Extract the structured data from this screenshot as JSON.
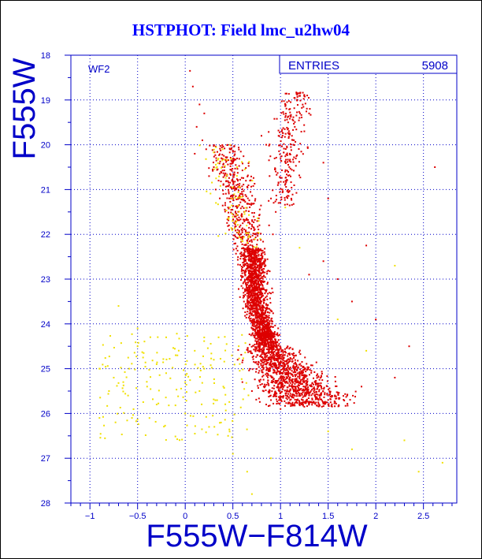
{
  "chart_data": {
    "type": "scatter",
    "title": "HSTPHOT: Field lmc_u2hw04",
    "xlabel": "F555W−F814W",
    "ylabel": "F555W",
    "panel_label": "WF2",
    "stats": {
      "label": "ENTRIES",
      "value": "5908"
    },
    "xlim": [
      -1.2,
      2.85
    ],
    "ylim": [
      28,
      18
    ],
    "y_inverted": true,
    "grid": true,
    "grid_style": "dotted",
    "x_ticks": [
      -1,
      -0.5,
      0,
      0.5,
      1,
      1.5,
      2,
      2.5
    ],
    "x_tick_labels": [
      "−1",
      "−0.5",
      "0",
      "0.5",
      "1",
      "1.5",
      "2",
      "2.5"
    ],
    "y_ticks": [
      18,
      19,
      20,
      21,
      22,
      23,
      24,
      25,
      26,
      27,
      28
    ],
    "y_tick_labels": [
      "18",
      "19",
      "20",
      "21",
      "22",
      "23",
      "24",
      "25",
      "26",
      "27",
      "28"
    ],
    "colors": {
      "axis": "#0000c8",
      "title": "#0000ff",
      "main_points": "#dd0000",
      "secondary_points": "#f0e000"
    },
    "series": [
      {
        "color": "#dd0000",
        "points": [
          [
            0.05,
            18.35
          ],
          [
            0.08,
            18.7
          ],
          [
            0.15,
            19.1
          ],
          [
            0.2,
            19.3
          ],
          [
            0.12,
            19.6
          ],
          [
            0.18,
            19.9
          ],
          [
            0.1,
            20.2
          ],
          [
            0.22,
            20.1
          ],
          [
            1.05,
            19.1
          ],
          [
            1.1,
            19.2
          ],
          [
            1.08,
            19.5
          ],
          [
            1.15,
            19.6
          ],
          [
            1.2,
            19.4
          ],
          [
            1.12,
            19.8
          ],
          [
            1.25,
            19.7
          ],
          [
            1.3,
            19.3
          ],
          [
            0.8,
            19.8
          ],
          [
            0.85,
            20.0
          ],
          [
            1.0,
            20.3
          ],
          [
            1.05,
            20.6
          ],
          [
            1.02,
            21.0
          ],
          [
            0.98,
            21.3
          ],
          [
            2.62,
            20.5
          ],
          [
            1.45,
            20.4
          ],
          [
            1.28,
            18.9
          ],
          [
            1.18,
            18.85
          ],
          [
            1.9,
            22.25
          ],
          [
            1.5,
            21.2
          ],
          [
            0.3,
            20.5
          ],
          [
            0.35,
            20.8
          ],
          [
            0.4,
            21.1
          ],
          [
            0.45,
            21.4
          ],
          [
            0.5,
            21.7
          ],
          [
            0.55,
            21.9
          ],
          [
            0.6,
            22.1
          ],
          [
            0.25,
            20.7
          ],
          [
            0.32,
            21.0
          ],
          [
            0.42,
            21.3
          ],
          [
            0.52,
            21.6
          ],
          [
            0.58,
            21.8
          ],
          [
            0.9,
            21.2
          ],
          [
            0.95,
            21.5
          ],
          [
            0.88,
            21.8
          ],
          [
            0.92,
            22.0
          ],
          [
            0.65,
            22.3
          ],
          [
            0.7,
            22.6
          ],
          [
            0.75,
            22.9
          ],
          [
            0.72,
            23.2
          ],
          [
            0.8,
            23.5
          ],
          [
            0.78,
            23.8
          ],
          [
            0.82,
            24.1
          ],
          [
            0.9,
            24.4
          ],
          [
            1.0,
            24.7
          ],
          [
            1.1,
            25.0
          ],
          [
            1.2,
            25.3
          ],
          [
            1.35,
            25.5
          ],
          [
            1.5,
            25.7
          ],
          [
            1.7,
            25.6
          ],
          [
            1.85,
            25.4
          ],
          [
            2.2,
            25.2
          ],
          [
            2.35,
            24.5
          ],
          [
            2.0,
            23.9
          ],
          [
            1.75,
            23.5
          ],
          [
            1.6,
            23.0
          ],
          [
            1.3,
            22.9
          ],
          [
            1.45,
            22.6
          ],
          [
            0.6,
            25.3
          ],
          [
            0.55,
            24.8
          ],
          [
            0.7,
            25.5
          ],
          [
            0.85,
            25.8
          ],
          [
            1.0,
            25.9
          ],
          [
            1.25,
            25.85
          ]
        ]
      },
      {
        "color": "#f0e000",
        "points": [
          [
            -0.9,
            25.0
          ],
          [
            -0.75,
            25.2
          ],
          [
            -0.5,
            24.5
          ],
          [
            -0.4,
            25.4
          ],
          [
            -0.3,
            24.9
          ],
          [
            -0.2,
            25.1
          ],
          [
            -0.1,
            24.7
          ],
          [
            0.0,
            25.3
          ],
          [
            0.1,
            24.6
          ],
          [
            0.2,
            25.0
          ],
          [
            0.3,
            24.8
          ],
          [
            0.4,
            25.4
          ],
          [
            -0.6,
            25.6
          ],
          [
            -0.8,
            25.5
          ],
          [
            -0.3,
            25.8
          ],
          [
            0.25,
            26.3
          ],
          [
            0.5,
            26.9
          ],
          [
            0.65,
            27.3
          ],
          [
            0.45,
            26.5
          ],
          [
            1.5,
            26.4
          ],
          [
            1.75,
            26.8
          ],
          [
            2.3,
            26.6
          ],
          [
            2.7,
            27.1
          ],
          [
            2.45,
            27.3
          ],
          [
            0.9,
            27.0
          ],
          [
            -0.7,
            23.6
          ],
          [
            -0.5,
            24.1
          ],
          [
            1.6,
            23.9
          ],
          [
            1.9,
            24.6
          ],
          [
            2.2,
            22.7
          ],
          [
            0.7,
            27.8
          ],
          [
            0.0,
            26.0
          ],
          [
            -0.9,
            26.1
          ],
          [
            -0.65,
            25.3
          ],
          [
            0.15,
            25.5
          ],
          [
            0.35,
            24.3
          ],
          [
            -0.2,
            24.3
          ],
          [
            1.05,
            21.4
          ],
          [
            0.6,
            21.6
          ],
          [
            1.2,
            22.3
          ]
        ]
      }
    ]
  }
}
